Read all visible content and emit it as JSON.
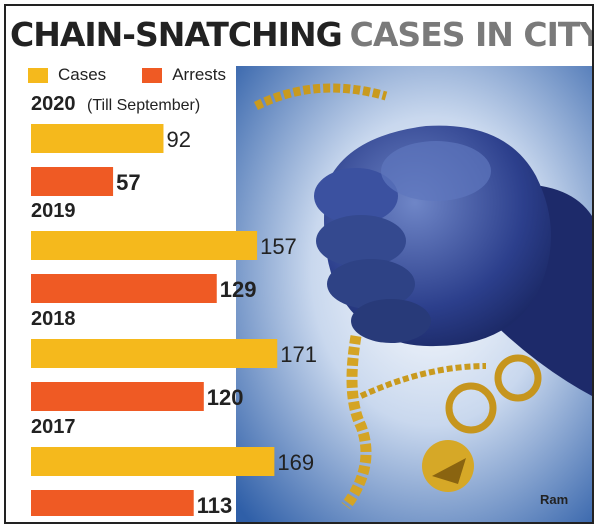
{
  "title": {
    "part1": "CHAIN-SNATCHING",
    "part2": "CASES IN CITY"
  },
  "legend": [
    {
      "label": "Cases",
      "color": "#f5b91c"
    },
    {
      "label": "Arrests",
      "color": "#ef5a24"
    }
  ],
  "credit": "Ram",
  "chart_data": {
    "type": "bar",
    "orientation": "horizontal",
    "categories": [
      "2020",
      "2019",
      "2018",
      "2017"
    ],
    "category_notes": [
      "(Till September)",
      "",
      "",
      ""
    ],
    "series": [
      {
        "name": "Cases",
        "values": [
          92,
          157,
          171,
          169
        ],
        "color": "#f5b91c"
      },
      {
        "name": "Arrests",
        "values": [
          57,
          129,
          120,
          113
        ],
        "color": "#ef5a24"
      }
    ],
    "legend_position": "top-left",
    "grid": false
  }
}
